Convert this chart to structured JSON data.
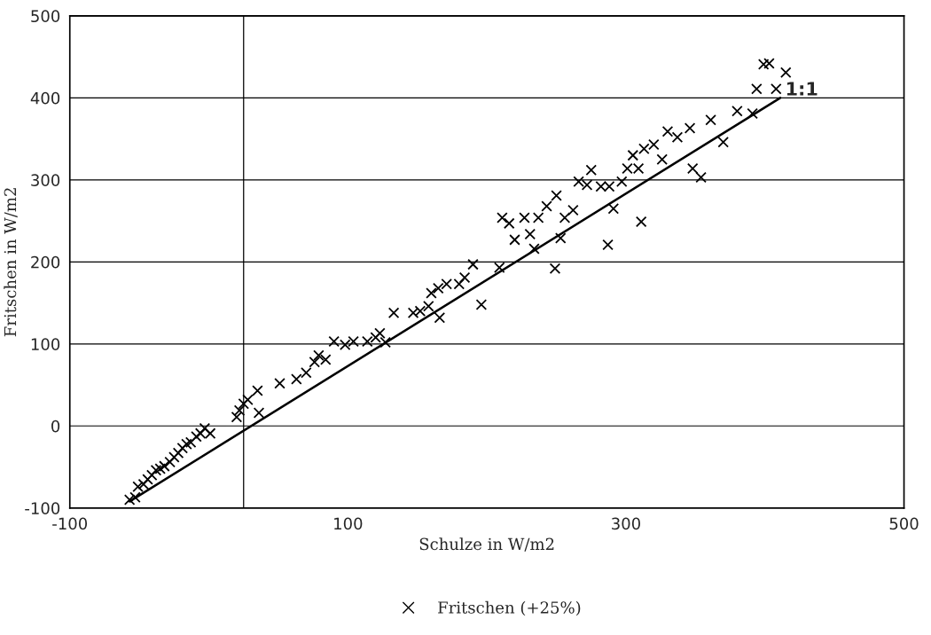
{
  "chart_data": {
    "type": "scatter",
    "xlabel": "Schulze in W/m2",
    "ylabel": "Fritschen in W/m2",
    "xlim": [
      -100,
      500
    ],
    "xticks": [
      -100,
      100,
      300,
      500
    ],
    "ylim": [
      -100,
      500
    ],
    "yticks": [
      -100,
      0,
      100,
      200,
      300,
      400,
      500
    ],
    "grid": "y",
    "legend": "bottom",
    "ref_lines": [
      {
        "axis": "x",
        "value": 25,
        "color": "#000000"
      }
    ],
    "annotations": [
      {
        "text": "1:1",
        "x": 411,
        "y": 400
      }
    ],
    "series": [
      {
        "name": "Fritschen (+25%)",
        "marker": "cross",
        "color": "#000000",
        "x": [
          -57,
          -53,
          -51,
          -47,
          -44,
          -41,
          -38,
          -35,
          -32,
          -28,
          -25,
          -22,
          -19,
          -16,
          -13,
          -9,
          -6,
          -3,
          1,
          20,
          22,
          25,
          28,
          35,
          36,
          51,
          63,
          70,
          76,
          79,
          84,
          90,
          98,
          104,
          114,
          120,
          127,
          123,
          133,
          147,
          152,
          158,
          160,
          165,
          166,
          171,
          180,
          184,
          190,
          196,
          209,
          211,
          216,
          220,
          227,
          231,
          234,
          237,
          243,
          249,
          250,
          253,
          256,
          262,
          266,
          272,
          275,
          282,
          287,
          288,
          291,
          297,
          301,
          305,
          309,
          311,
          313,
          320,
          326,
          330,
          337,
          346,
          348,
          354,
          361,
          370,
          380,
          391,
          394,
          399,
          403,
          408,
          415
        ],
        "values": [
          -90,
          -87,
          -74,
          -71,
          -65,
          -60,
          -54,
          -52,
          -49,
          -44,
          -38,
          -33,
          -27,
          -22,
          -20,
          -13,
          -9,
          -3,
          -9,
          11,
          19,
          27,
          32,
          43,
          16,
          52,
          57,
          65,
          78,
          86,
          81,
          103,
          99,
          103,
          103,
          108,
          102,
          113,
          138,
          138,
          140,
          146,
          162,
          168,
          132,
          173,
          173,
          181,
          197,
          148,
          193,
          254,
          247,
          227,
          254,
          234,
          216,
          254,
          268,
          192,
          281,
          229,
          254,
          263,
          298,
          294,
          312,
          292,
          221,
          292,
          265,
          298,
          314,
          330,
          314,
          249,
          338,
          343,
          325,
          359,
          352,
          363,
          314,
          303,
          373,
          346,
          384,
          381,
          411,
          441,
          442,
          411,
          431
        ]
      },
      {
        "type": "line",
        "color": "#000000",
        "x": [
          -57,
          411
        ],
        "values": [
          -92,
          400
        ]
      }
    ]
  }
}
